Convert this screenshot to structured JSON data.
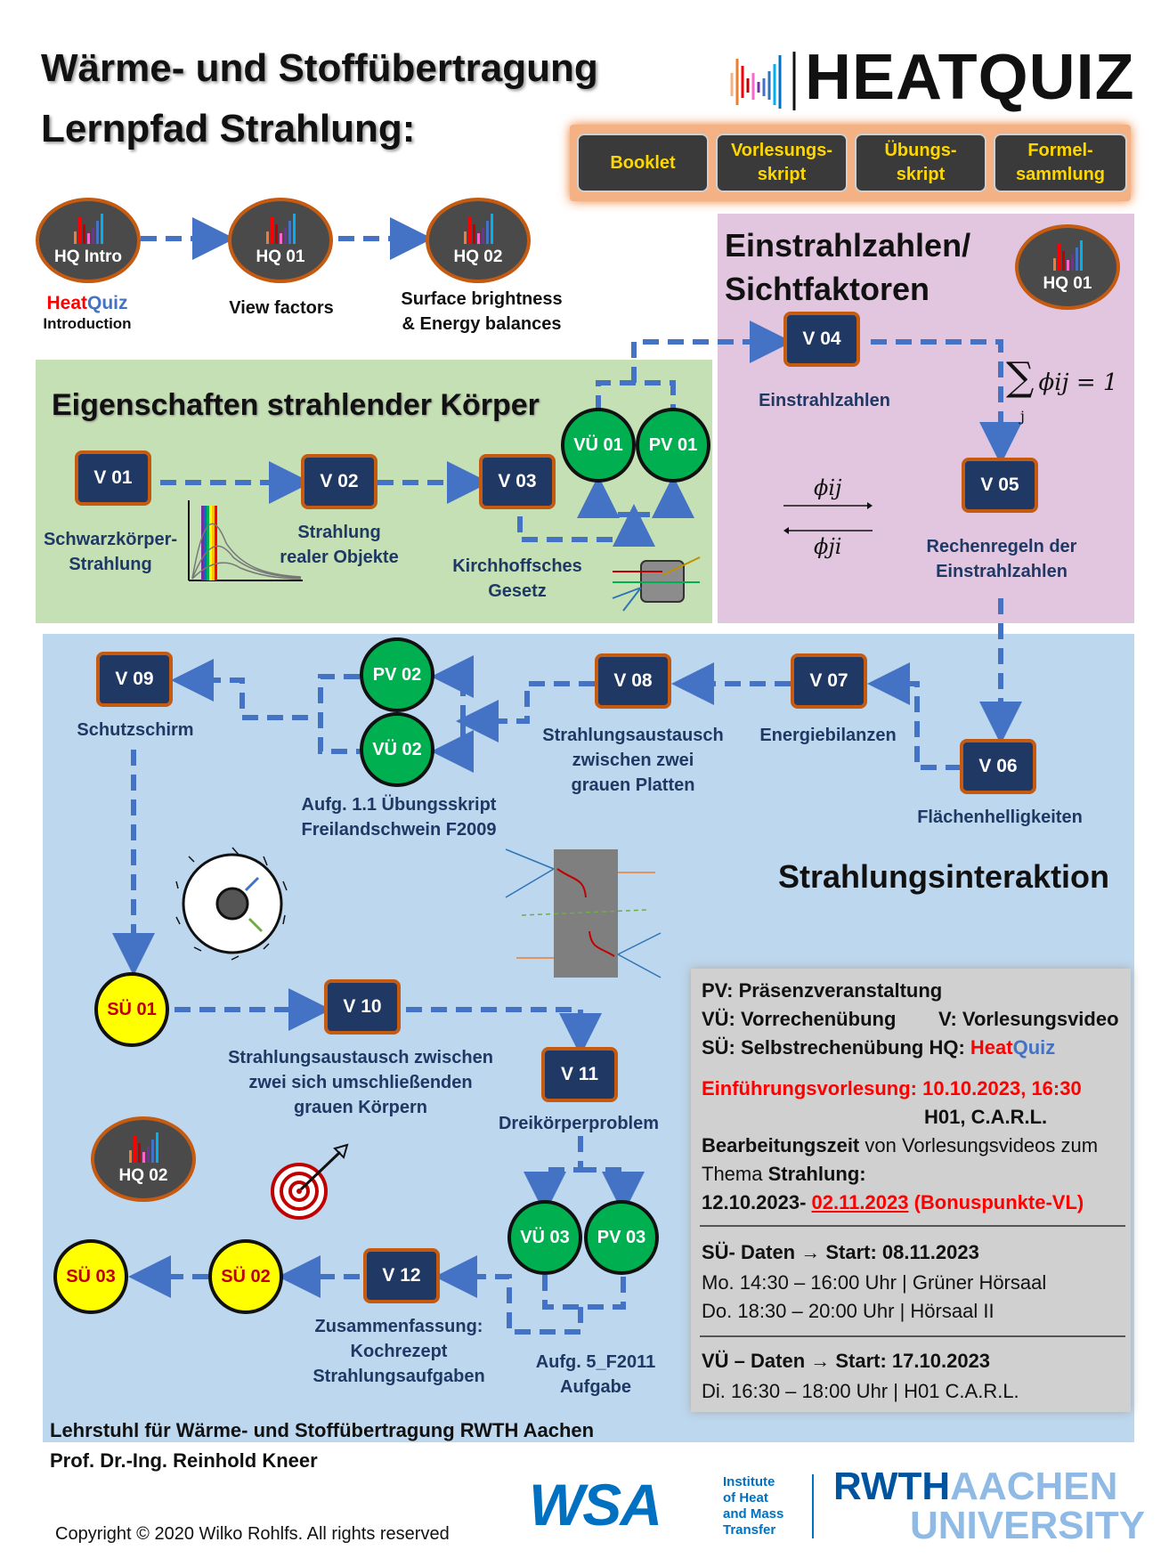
{
  "header": {
    "title_line1": "Wärme- und Stoffübertragung",
    "title_line2": "Lernpfad Strahlung:",
    "brand": "HEATQUIZ"
  },
  "buttons": [
    {
      "label": "Booklet"
    },
    {
      "label": "Vorlesungs-\nskript"
    },
    {
      "label": "Übungs-\nskript"
    },
    {
      "label": "Formel-\nsammlung"
    }
  ],
  "hq_top": [
    {
      "label": "HQ Intro",
      "caption_heat": "Heat",
      "caption_quiz": "Quiz",
      "caption2": "Introduction"
    },
    {
      "label": "HQ 01",
      "caption": "View factors"
    },
    {
      "label": "HQ 02",
      "caption": "Surface brightness\n& Energy balances"
    }
  ],
  "sections": {
    "green": "Eigenschaften strahlender Körper",
    "purple": "Einstrahlzahlen/\nSichtfaktoren",
    "blue": "Strahlungsinteraktion"
  },
  "hq_purple": "HQ 01",
  "hq_blue": "HQ 02",
  "nodes": {
    "v01": "V 01",
    "v02": "V 02",
    "v03": "V 03",
    "v04": "V 04",
    "v05": "V 05",
    "v06": "V 06",
    "v07": "V 07",
    "v08": "V 08",
    "v09": "V 09",
    "v10": "V  10",
    "v11": "V 11",
    "v12": "V 12",
    "vu01": "VÜ 01",
    "pv01": "PV 01",
    "pv02": "PV 02",
    "vu02": "VÜ 02",
    "vu03": "VÜ 03",
    "pv03": "PV 03",
    "su01": "SÜ 01",
    "su02": "SÜ 02",
    "su03": "SÜ 03"
  },
  "labels": {
    "v01": "Schwarzkörper-\nStrahlung",
    "v02": "Strahlung\nrealer Objekte",
    "v03": "Kirchhoffsches\nGesetz",
    "v04": "Einstrahlzahlen",
    "v05": "Rechenregeln der\nEinstrahlzahlen",
    "v06": "Flächenhelligkeiten",
    "v07": "Energiebilanzen",
    "v08": "Strahlungsaustausch\nzwischen zwei\ngrauen Platten",
    "v09": "Schutzschirm",
    "pv02": "Aufg. 1.1 Übungsskript\nFreilandschwein F2009",
    "v10": "Strahlungsaustausch zwischen\nzwei sich umschließenden\ngrauen Körpern",
    "v11": "Dreikörperproblem",
    "v12": "Zusammenfassung:\nKochrezept\nStrahlungsaufgaben",
    "pv03": "Aufg. 5_F2011\nAufgabe"
  },
  "formula": {
    "sum": "∑",
    "sum_sub": "j",
    "sum_rhs": "ϕij = 1",
    "phi_ij": "ϕij",
    "phi_ji": "ϕji"
  },
  "info": {
    "l1": "PV: Präsenzveranstaltung",
    "l2a": "VÜ: Vorrechenübung",
    "l2b": "V: Vorlesungsvideo",
    "l3a": "SÜ: Selbstrechenübung HQ:",
    "l3_heat": "Heat",
    "l3_quiz": "Quiz",
    "l4": "Einführungsvorlesung: 10.10.2023, 16:30",
    "l5": "H01, C.A.R.L.",
    "l6a": "Bearbeitungszeit",
    "l6b": " von Vorlesungsvideos zum",
    "l7a": "Thema ",
    "l7b": "Strahlung:",
    "l8a": "12.10.2023- ",
    "l8b": "02.11.2023",
    "l8c": " (Bonuspunkte-VL)",
    "l9": "SÜ- Daten  →  Start: 08.11.2023",
    "l10": "Mo.   14:30 – 16:00 Uhr | Grüner Hörsaal",
    "l11": "Do.   18:30 – 20:00 Uhr | Hörsaal II",
    "l12": "VÜ – Daten → Start: 17.10.2023",
    "l13": "Di.     16:30 – 18:00 Uhr | H01 C.A.R.L."
  },
  "footer": {
    "chair": "Lehrstuhl für Wärme- und Stoffübertragung RWTH Aachen",
    "prof": "Prof. Dr.-Ing. Reinhold Kneer",
    "copyright": "Copyright © 2020 Wilko Rohlfs. All rights reserved",
    "wsa_logo": "WSA",
    "institute": "Institute\nof Heat\nand Mass\nTransfer",
    "rwth1": "RWTH",
    "rwth2": "AACHEN",
    "rwth3": "UNIVERSITY"
  },
  "colors": {
    "green_region": "#c5e0b4",
    "purple_region": "#e2c6e0",
    "blue_region": "#bdd7ee",
    "arrow": "#4472c4",
    "node_border": "#c55a11"
  }
}
